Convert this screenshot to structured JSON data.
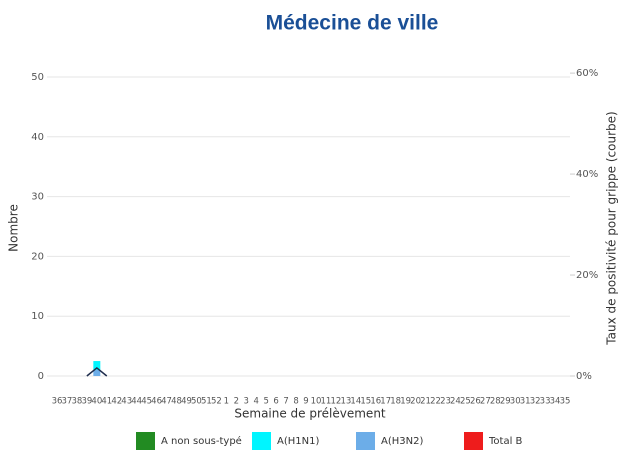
{
  "chart_data": {
    "type": "bar",
    "stacked": true,
    "title": "Médecine de ville",
    "xlabel": "Semaine de prélèvement",
    "ylabel": "Nombre",
    "y2label": "Taux de positivité pour grippe (courbe)",
    "categories": [
      "36",
      "37",
      "38",
      "39",
      "40",
      "41",
      "42",
      "43",
      "44",
      "45",
      "46",
      "47",
      "48",
      "49",
      "50",
      "51",
      "52",
      "1",
      "2",
      "3",
      "4",
      "5",
      "6",
      "7",
      "8",
      "9",
      "10",
      "11",
      "12",
      "13",
      "14",
      "15",
      "16",
      "17",
      "18",
      "19",
      "20",
      "21",
      "22",
      "23",
      "24",
      "25",
      "26",
      "27",
      "28",
      "29",
      "30",
      "31",
      "32",
      "33",
      "34",
      "35"
    ],
    "series": [
      {
        "name": "A non sous-typé",
        "color": "#228b22",
        "values": [
          0,
          0,
          0,
          0,
          0,
          0,
          0,
          0,
          0,
          0,
          0,
          0,
          0,
          0,
          0,
          0,
          0,
          0,
          0,
          0,
          0,
          0,
          0,
          0,
          0,
          0,
          0,
          0,
          0,
          0,
          0,
          0,
          0,
          0,
          0,
          0,
          0,
          0,
          0,
          0,
          0,
          0,
          0,
          0,
          0,
          0,
          0,
          0,
          0,
          0,
          0,
          0
        ]
      },
      {
        "name": "A(H1N1)",
        "color": "#00f5ff",
        "values": [
          0,
          0,
          0,
          0,
          1.5,
          0,
          0,
          0,
          0,
          0,
          0,
          0,
          0,
          0,
          0,
          0,
          0,
          0,
          0,
          0,
          0,
          0,
          0,
          0,
          0,
          0,
          0,
          0,
          0,
          0,
          0,
          0,
          0,
          0,
          0,
          0,
          0,
          0,
          0,
          0,
          0,
          0,
          0,
          0,
          0,
          0,
          0,
          0,
          0,
          0,
          0,
          0
        ]
      },
      {
        "name": "A(H3N2)",
        "color": "#6cade8",
        "values": [
          0,
          0,
          0,
          0,
          1,
          0,
          0,
          0,
          0,
          0,
          0,
          0,
          0,
          0,
          0,
          0,
          0,
          0,
          0,
          0,
          0,
          0,
          0,
          0,
          0,
          0,
          0,
          0,
          0,
          0,
          0,
          0,
          0,
          0,
          0,
          0,
          0,
          0,
          0,
          0,
          0,
          0,
          0,
          0,
          0,
          0,
          0,
          0,
          0,
          0,
          0,
          0
        ]
      },
      {
        "name": "Total B",
        "color": "#ee1c1c",
        "values": [
          0,
          0,
          0,
          0,
          0,
          0,
          0,
          0,
          0,
          0,
          0,
          0,
          0,
          0,
          0,
          0,
          0,
          0,
          0,
          0,
          0,
          0,
          0,
          0,
          0,
          0,
          0,
          0,
          0,
          0,
          0,
          0,
          0,
          0,
          0,
          0,
          0,
          0,
          0,
          0,
          0,
          0,
          0,
          0,
          0,
          0,
          0,
          0,
          0,
          0,
          0,
          0
        ]
      }
    ],
    "line": {
      "type": "line",
      "axis": "y2",
      "color": "#1f2d4d",
      "values": [
        null,
        null,
        null,
        0,
        1.6,
        0,
        null,
        null,
        null,
        null,
        null,
        null,
        null,
        null,
        null,
        null,
        null,
        null,
        null,
        null,
        null,
        null,
        null,
        null,
        null,
        null,
        null,
        null,
        null,
        null,
        null,
        null,
        null,
        null,
        null,
        null,
        null,
        null,
        null,
        null,
        null,
        null,
        null,
        null,
        null,
        null,
        null,
        null,
        null,
        null,
        null,
        null
      ]
    },
    "ylim": [
      0,
      52.5
    ],
    "yticks": [
      0,
      10,
      20,
      30,
      40,
      50
    ],
    "y2lim": [
      0,
      62.2
    ],
    "y2ticks": [
      {
        "value": 0,
        "label": "0%"
      },
      {
        "value": 20,
        "label": "20%"
      },
      {
        "value": 40,
        "label": "40%"
      },
      {
        "value": 60,
        "label": "60%"
      }
    ],
    "grid": true,
    "legend": "bottom"
  }
}
